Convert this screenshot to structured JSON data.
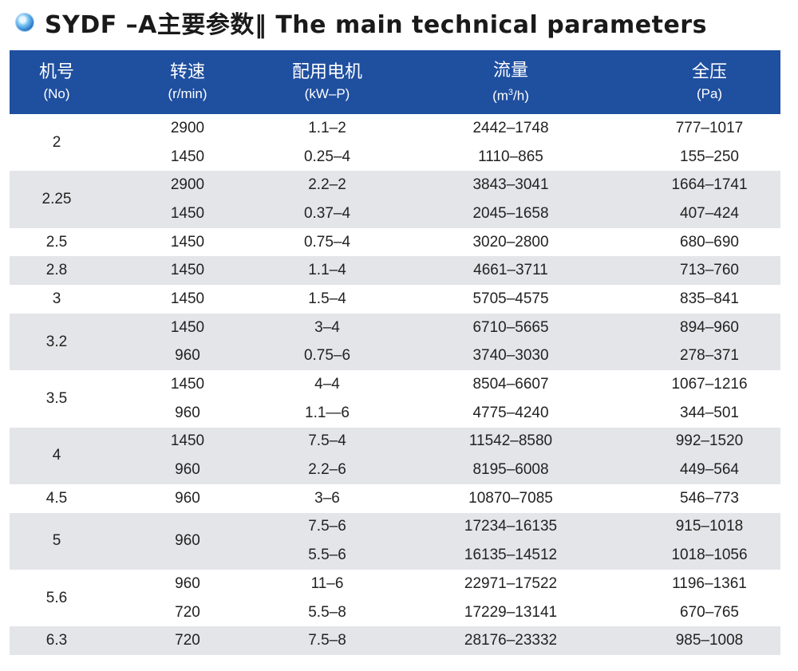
{
  "title": "SYDF –A主要参数‖  The main technical parameters",
  "headers": [
    {
      "cn": "机号",
      "en": "(No)"
    },
    {
      "cn": "转速",
      "en": "(r/min)"
    },
    {
      "cn": "配用电机",
      "en": "(kW–P)"
    },
    {
      "cn": "流量",
      "en_pre": "(m",
      "en_sup": "3",
      "en_post": "/h)"
    },
    {
      "cn": "全压",
      "en": "(Pa)"
    }
  ],
  "groups": [
    {
      "no": "2",
      "shade": false,
      "rows": [
        {
          "speed": "2900",
          "motor": "1.1–2",
          "flow": "2442–1748",
          "pressure": "777–1017"
        },
        {
          "speed": "1450",
          "motor": "0.25–4",
          "flow": "1110–865",
          "pressure": "155–250"
        }
      ]
    },
    {
      "no": "2.25",
      "shade": true,
      "rows": [
        {
          "speed": "2900",
          "motor": "2.2–2",
          "flow": "3843–3041",
          "pressure": "1664–1741"
        },
        {
          "speed": "1450",
          "motor": "0.37–4",
          "flow": "2045–1658",
          "pressure": "407–424"
        }
      ]
    },
    {
      "no": "2.5",
      "shade": false,
      "rows": [
        {
          "speed": "1450",
          "motor": "0.75–4",
          "flow": "3020–2800",
          "pressure": "680–690"
        }
      ]
    },
    {
      "no": "2.8",
      "shade": true,
      "rows": [
        {
          "speed": "1450",
          "motor": "1.1–4",
          "flow": "4661–3711",
          "pressure": "713–760"
        }
      ]
    },
    {
      "no": "3",
      "shade": false,
      "rows": [
        {
          "speed": "1450",
          "motor": "1.5–4",
          "flow": "5705–4575",
          "pressure": "835–841"
        }
      ]
    },
    {
      "no": "3.2",
      "shade": true,
      "rows": [
        {
          "speed": "1450",
          "motor": "3–4",
          "flow": "6710–5665",
          "pressure": "894–960"
        },
        {
          "speed": "960",
          "motor": "0.75–6",
          "flow": "3740–3030",
          "pressure": "278–371"
        }
      ]
    },
    {
      "no": "3.5",
      "shade": false,
      "rows": [
        {
          "speed": "1450",
          "motor": "4–4",
          "flow": "8504–6607",
          "pressure": "1067–1216"
        },
        {
          "speed": "960",
          "motor": "1.1—6",
          "flow": "4775–4240",
          "pressure": "344–501"
        }
      ]
    },
    {
      "no": "4",
      "shade": true,
      "rows": [
        {
          "speed": "1450",
          "motor": "7.5–4",
          "flow": "11542–8580",
          "pressure": "992–1520"
        },
        {
          "speed": "960",
          "motor": "2.2–6",
          "flow": "8195–6008",
          "pressure": "449–564"
        }
      ]
    },
    {
      "no": "4.5",
      "shade": false,
      "rows": [
        {
          "speed": "960",
          "motor": "3–6",
          "flow": "10870–7085",
          "pressure": "546–773"
        }
      ]
    },
    {
      "no": "5",
      "shade": true,
      "merged_speed": "960",
      "rows": [
        {
          "speed": "",
          "motor": "7.5–6",
          "flow": "17234–16135",
          "pressure": "915–1018"
        },
        {
          "speed": "",
          "motor": "5.5–6",
          "flow": "16135–14512",
          "pressure": "1018–1056"
        }
      ]
    },
    {
      "no": "5.6",
      "shade": false,
      "rows": [
        {
          "speed": "960",
          "motor": "11–6",
          "flow": "22971–17522",
          "pressure": "1196–1361"
        },
        {
          "speed": "720",
          "motor": "5.5–8",
          "flow": "17229–13141",
          "pressure": "670–765"
        }
      ]
    },
    {
      "no": "6.3",
      "shade": true,
      "rows": [
        {
          "speed": "720",
          "motor": "7.5–8",
          "flow": "28176–23332",
          "pressure": "985–1008"
        }
      ]
    }
  ]
}
